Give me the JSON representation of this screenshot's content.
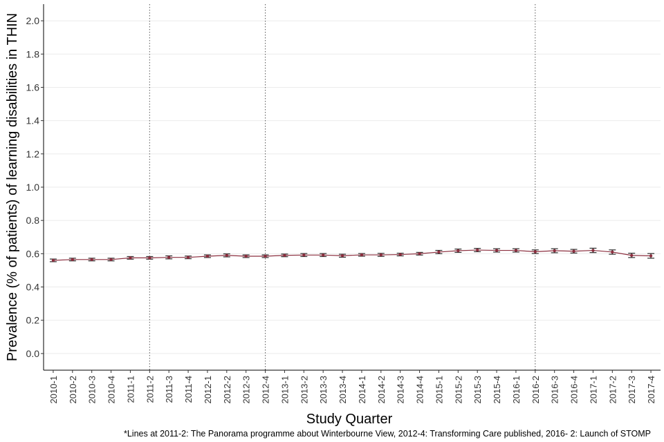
{
  "chart_data": {
    "type": "line",
    "xlabel": "Study Quarter",
    "ylabel": "Prevalence (% of patients) of learning disabilities in THIN",
    "caption": "*Lines at 2011-2: The Panorama programme about Winterbourne View, 2012-4: Transforming Care published, 2016- 2: Launch of STOMP",
    "ylim": [
      -0.1,
      2.1
    ],
    "yticks": [
      "0.0",
      "0.2",
      "0.4",
      "0.6",
      "0.8",
      "1.0",
      "1.2",
      "1.4",
      "1.6",
      "1.8",
      "2.0"
    ],
    "categories": [
      "2010-1",
      "2010-2",
      "2010-3",
      "2010-4",
      "2011-1",
      "2011-2",
      "2011-3",
      "2011-4",
      "2012-1",
      "2012-2",
      "2012-3",
      "2012-4",
      "2013-1",
      "2013-2",
      "2013-3",
      "2013-4",
      "2014-1",
      "2014-2",
      "2014-3",
      "2014-4",
      "2015-1",
      "2015-2",
      "2015-3",
      "2015-4",
      "2016-1",
      "2016-2",
      "2016-3",
      "2016-4",
      "2017-1",
      "2017-2",
      "2017-3",
      "2017-4"
    ],
    "series": [
      {
        "values": [
          0.56,
          0.565,
          0.565,
          0.565,
          0.575,
          0.575,
          0.578,
          0.578,
          0.585,
          0.59,
          0.585,
          0.585,
          0.59,
          0.592,
          0.592,
          0.588,
          0.593,
          0.593,
          0.595,
          0.6,
          0.61,
          0.618,
          0.622,
          0.62,
          0.62,
          0.612,
          0.618,
          0.615,
          0.62,
          0.61,
          0.59,
          0.587
        ],
        "ci_half_width": [
          0.008,
          0.008,
          0.008,
          0.008,
          0.008,
          0.008,
          0.009,
          0.008,
          0.008,
          0.009,
          0.008,
          0.008,
          0.008,
          0.009,
          0.009,
          0.009,
          0.008,
          0.009,
          0.008,
          0.008,
          0.01,
          0.01,
          0.01,
          0.01,
          0.01,
          0.011,
          0.012,
          0.011,
          0.013,
          0.013,
          0.013,
          0.014
        ]
      }
    ],
    "vlines": [
      "2011-2",
      "2012-4",
      "2016-2"
    ],
    "grid": true,
    "colors": {
      "line": "#8b2e3e",
      "errorbar": "#2a2a2a",
      "grid": "#ebebeb",
      "vline": "#555555"
    }
  }
}
